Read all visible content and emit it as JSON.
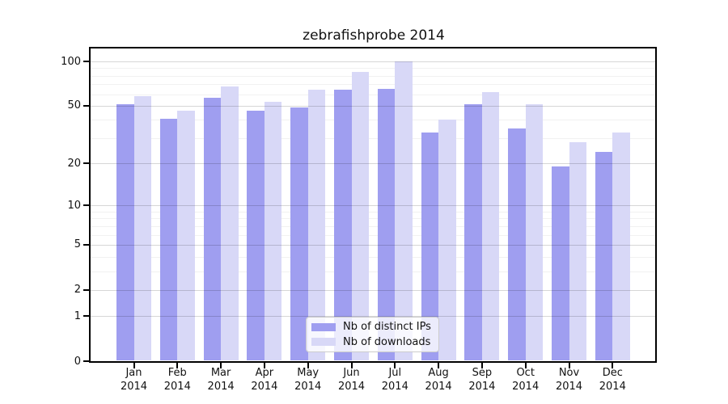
{
  "title": "zebrafishprobe 2014",
  "chart_data": {
    "type": "bar",
    "title": "zebrafishprobe 2014",
    "scale": "log1p",
    "categories": [
      "Jan",
      "Feb",
      "Mar",
      "Apr",
      "May",
      "Jun",
      "Jul",
      "Aug",
      "Sep",
      "Oct",
      "Nov",
      "Dec"
    ],
    "year": "2014",
    "series": [
      {
        "name": "Nb of distinct IPs",
        "color": "#9f9ef0",
        "values": [
          51,
          41,
          57,
          46,
          49,
          64,
          65,
          33,
          51,
          35,
          19,
          24
        ]
      },
      {
        "name": "Nb of downloads",
        "color": "#d8d8f7",
        "values": [
          58,
          46,
          68,
          53,
          64,
          85,
          100,
          40,
          62,
          51,
          28,
          33
        ]
      }
    ],
    "y_ticks": [
      0,
      1,
      2,
      5,
      10,
      20,
      50,
      100
    ],
    "y_minor_ticks": [
      3,
      4,
      6,
      7,
      8,
      9,
      30,
      40,
      60,
      70,
      80,
      90
    ],
    "ylim": [
      0,
      100
    ],
    "grid": true,
    "legend_position": "lower center"
  },
  "legend": {
    "items": [
      {
        "label": "Nb of distinct IPs",
        "color": "#9f9ef0"
      },
      {
        "label": "Nb of downloads",
        "color": "#d8d8f7"
      }
    ]
  }
}
